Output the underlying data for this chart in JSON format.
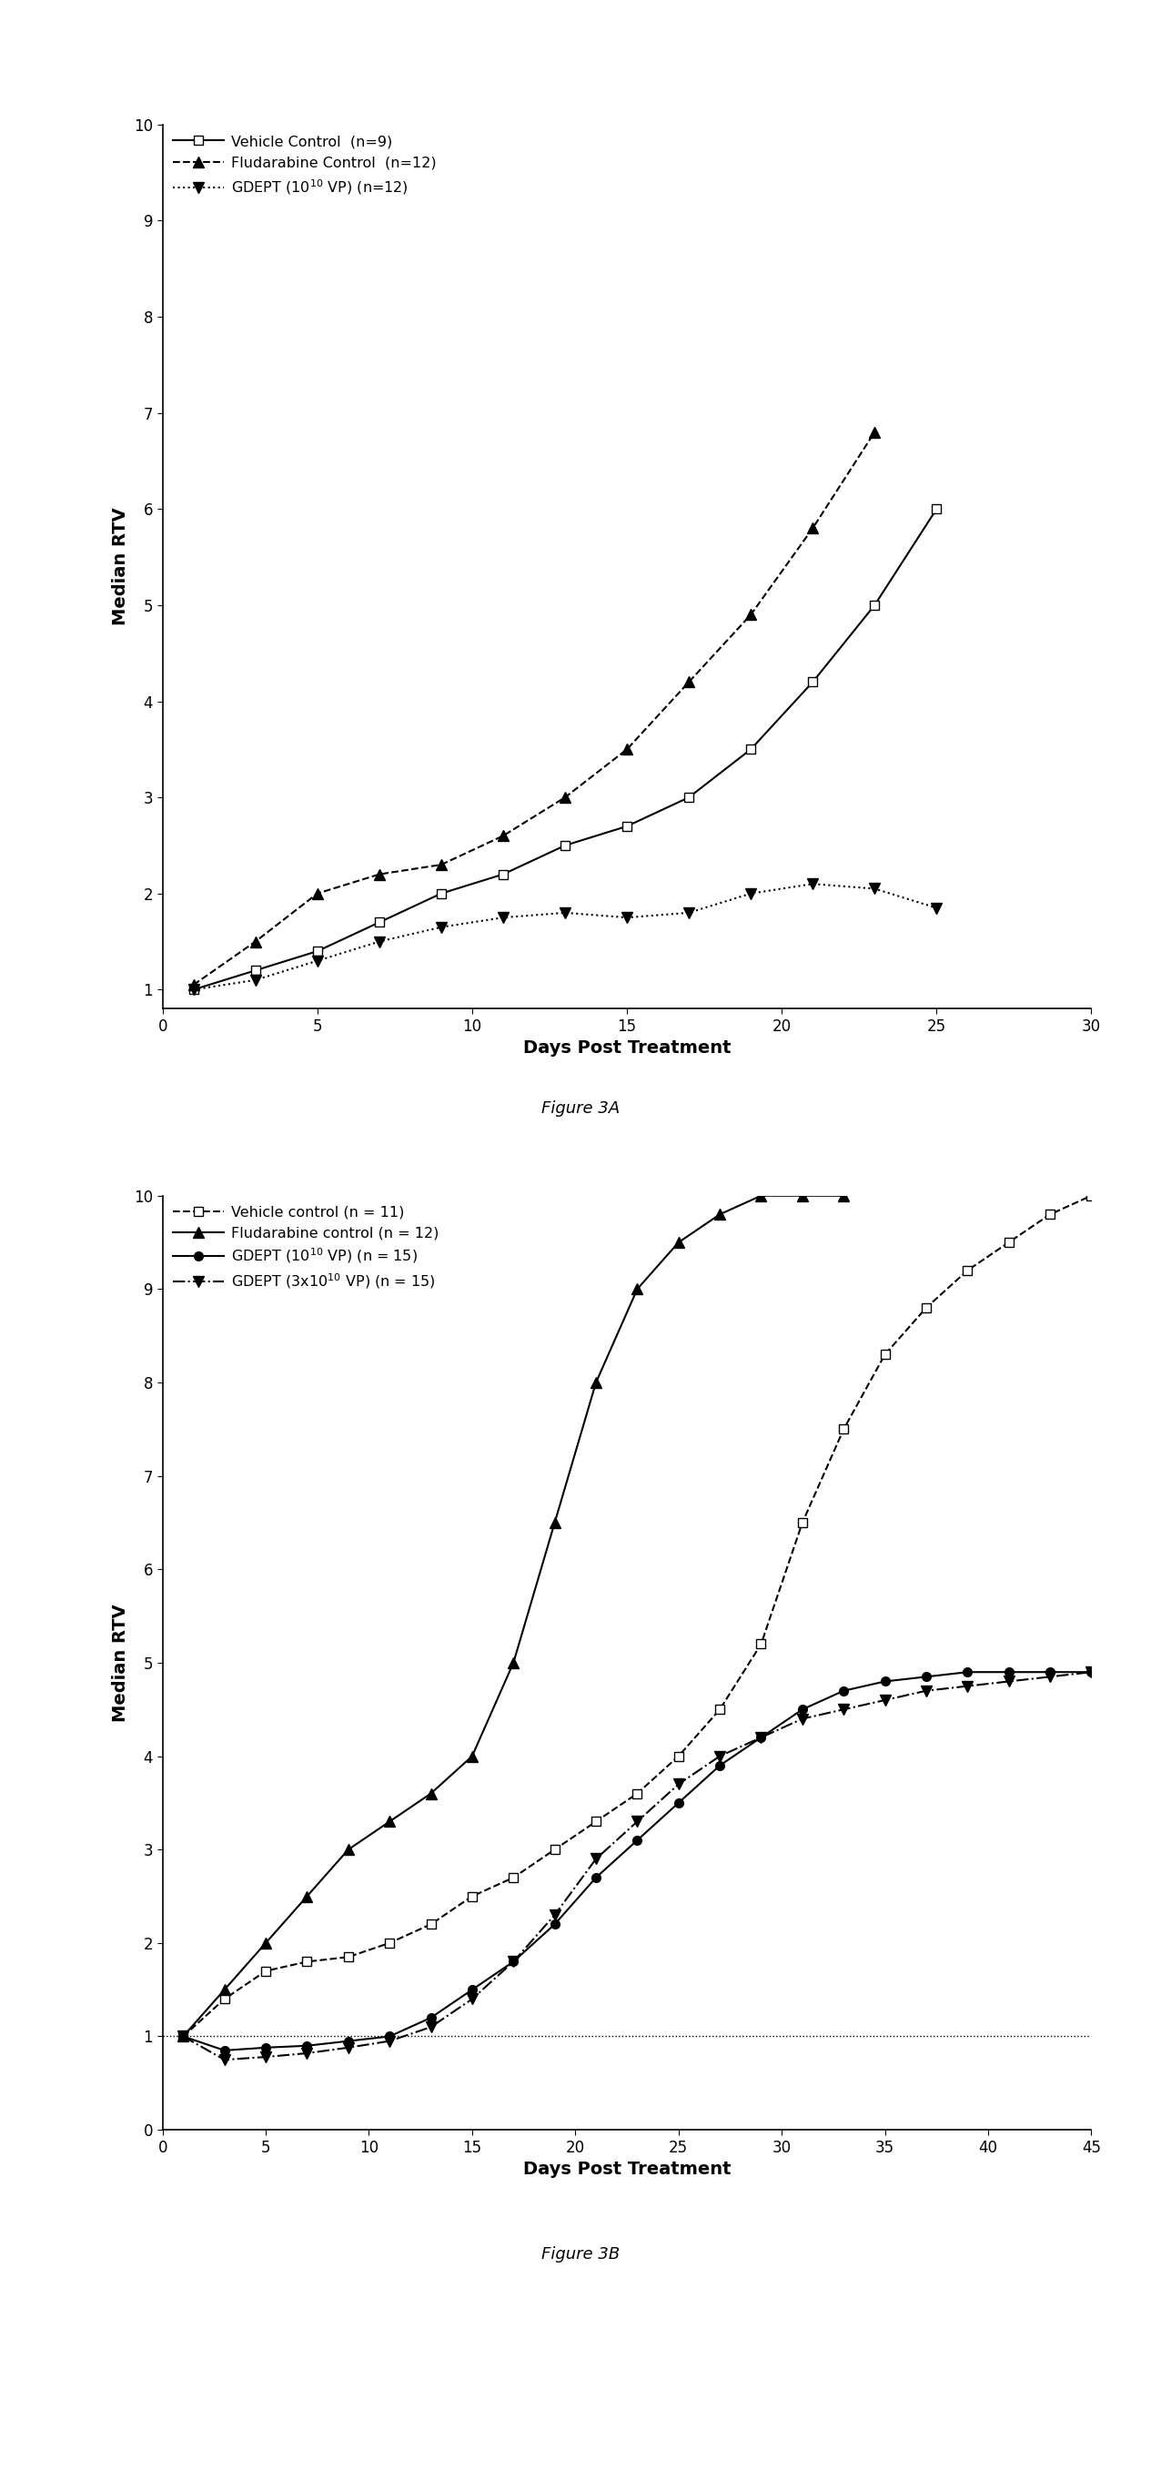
{
  "figA": {
    "title": "Figure 3A",
    "xlabel": "Days Post Treatment",
    "ylabel": "Median RTV",
    "xlim": [
      0,
      30
    ],
    "ylim": [
      0.8,
      10
    ],
    "yticks": [
      1,
      2,
      3,
      4,
      5,
      6,
      7,
      8,
      9,
      10
    ],
    "xticks": [
      0,
      5,
      10,
      15,
      20,
      25,
      30
    ],
    "series": [
      {
        "label": "Vehicle Control  (n=9)",
        "x": [
          1,
          3,
          5,
          7,
          9,
          11,
          13,
          15,
          17,
          19,
          21,
          23,
          25
        ],
        "y": [
          1.0,
          1.2,
          1.4,
          1.7,
          2.0,
          2.2,
          2.5,
          2.7,
          3.0,
          3.5,
          4.2,
          5.0,
          6.0
        ],
        "linestyle": "-",
        "marker": "s",
        "markersize": 7,
        "color": "black",
        "markerfacecolor": "white",
        "linewidth": 1.5
      },
      {
        "label": "Fludarabine Control  (n=12)",
        "x": [
          1,
          3,
          5,
          7,
          9,
          11,
          13,
          15,
          17,
          19,
          21,
          23
        ],
        "y": [
          1.05,
          1.5,
          2.0,
          2.2,
          2.3,
          2.6,
          3.0,
          3.5,
          4.2,
          4.9,
          5.8,
          6.8
        ],
        "linestyle": "--",
        "marker": "^",
        "markersize": 9,
        "color": "black",
        "markerfacecolor": "black",
        "linewidth": 1.5
      },
      {
        "label": "GDEPT (10$^{10}$ VP) (n=12)",
        "x": [
          1,
          3,
          5,
          7,
          9,
          11,
          13,
          15,
          17,
          19,
          21,
          23,
          25
        ],
        "y": [
          1.0,
          1.1,
          1.3,
          1.5,
          1.65,
          1.75,
          1.8,
          1.75,
          1.8,
          2.0,
          2.1,
          2.05,
          1.85
        ],
        "linestyle": ":",
        "marker": "v",
        "markersize": 9,
        "color": "black",
        "markerfacecolor": "black",
        "linewidth": 1.5
      }
    ]
  },
  "figB": {
    "title": "Figure 3B",
    "xlabel": "Days Post Treatment",
    "ylabel": "Median RTV",
    "xlim": [
      0,
      45
    ],
    "ylim": [
      0,
      10
    ],
    "yticks": [
      0,
      1,
      2,
      3,
      4,
      5,
      6,
      7,
      8,
      9,
      10
    ],
    "xticks": [
      0,
      5,
      10,
      15,
      20,
      25,
      30,
      35,
      40,
      45
    ],
    "hline_y": 1.0,
    "series": [
      {
        "label": "Vehicle control (n = 11)",
        "x": [
          1,
          3,
          5,
          7,
          9,
          11,
          13,
          15,
          17,
          19,
          21,
          23,
          25,
          27,
          29,
          31,
          33,
          35,
          37,
          39,
          41,
          43,
          45
        ],
        "y": [
          1.0,
          1.4,
          1.7,
          1.8,
          1.85,
          2.0,
          2.2,
          2.5,
          2.7,
          3.0,
          3.3,
          3.6,
          4.0,
          4.5,
          5.2,
          6.5,
          7.5,
          8.3,
          8.8,
          9.2,
          9.5,
          9.8,
          10.0
        ],
        "linestyle": "--",
        "marker": "s",
        "markersize": 7,
        "color": "black",
        "markerfacecolor": "white",
        "linewidth": 1.5
      },
      {
        "label": "Fludarabine control (n = 12)",
        "x": [
          1,
          3,
          5,
          7,
          9,
          11,
          13,
          15,
          17,
          19,
          21,
          23,
          25,
          27,
          29,
          31,
          33
        ],
        "y": [
          1.0,
          1.5,
          2.0,
          2.5,
          3.0,
          3.3,
          3.6,
          4.0,
          5.0,
          6.5,
          8.0,
          9.0,
          9.5,
          9.8,
          10.0,
          10.0,
          10.0
        ],
        "linestyle": "-",
        "marker": "^",
        "markersize": 9,
        "color": "black",
        "markerfacecolor": "black",
        "linewidth": 1.5
      },
      {
        "label": "GDEPT (10$^{10}$ VP) (n = 15)",
        "x": [
          1,
          3,
          5,
          7,
          9,
          11,
          13,
          15,
          17,
          19,
          21,
          23,
          25,
          27,
          29,
          31,
          33,
          35,
          37,
          39,
          41,
          43,
          45
        ],
        "y": [
          1.0,
          0.85,
          0.88,
          0.9,
          0.95,
          1.0,
          1.2,
          1.5,
          1.8,
          2.2,
          2.7,
          3.1,
          3.5,
          3.9,
          4.2,
          4.5,
          4.7,
          4.8,
          4.85,
          4.9,
          4.9,
          4.9,
          4.9
        ],
        "linestyle": "-",
        "marker": "o",
        "markersize": 7,
        "color": "black",
        "markerfacecolor": "black",
        "linewidth": 1.5
      },
      {
        "label": "GDEPT (3x10$^{10}$ VP) (n = 15)",
        "x": [
          1,
          3,
          5,
          7,
          9,
          11,
          13,
          15,
          17,
          19,
          21,
          23,
          25,
          27,
          29,
          31,
          33,
          35,
          37,
          39,
          41,
          43,
          45
        ],
        "y": [
          1.0,
          0.75,
          0.78,
          0.82,
          0.88,
          0.95,
          1.1,
          1.4,
          1.8,
          2.3,
          2.9,
          3.3,
          3.7,
          4.0,
          4.2,
          4.4,
          4.5,
          4.6,
          4.7,
          4.75,
          4.8,
          4.85,
          4.9
        ],
        "linestyle": "-.",
        "marker": "v",
        "markersize": 9,
        "color": "black",
        "markerfacecolor": "black",
        "linewidth": 1.5
      }
    ]
  }
}
